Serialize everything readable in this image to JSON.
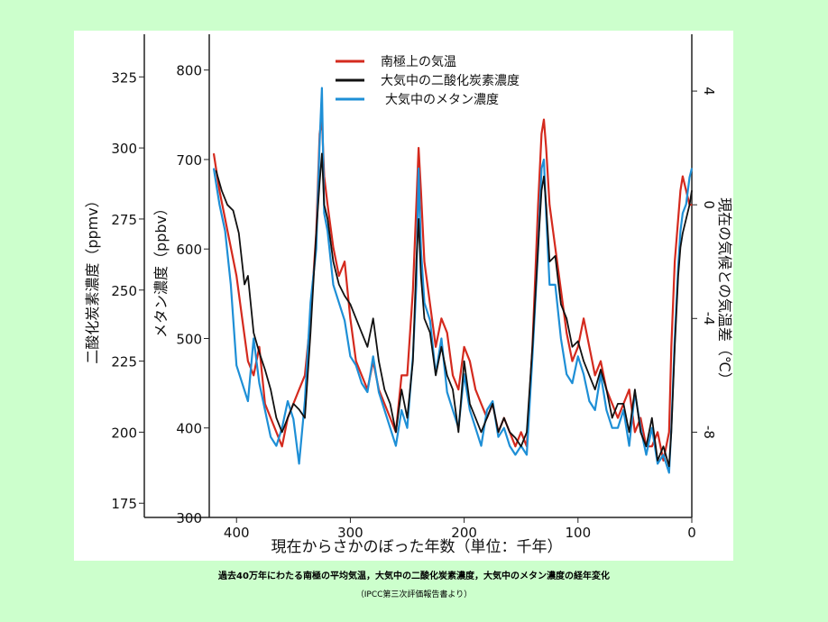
{
  "colors": {
    "background": "#ccffcc",
    "panel": "#ffffff",
    "temperature": "#d42a1e",
    "co2": "#111111",
    "methane": "#1e8fd6"
  },
  "caption": {
    "main": "過去40万年にわたる南極の平均気温，大気中の二酸化炭素濃度，大気中のメタン濃度の経年変化",
    "source": "（IPCC第三次評価報告書より）"
  },
  "chart_data": {
    "type": "line",
    "xlabel": "現在からさかのぼった年数（単位：千年）",
    "x_reversed": true,
    "xlim": [
      0,
      420
    ],
    "x_ticks": [
      400,
      300,
      200,
      100,
      0
    ],
    "grid": false,
    "legend_position": "top-center",
    "axes": {
      "co2": {
        "label": "二酸化炭素濃度（ppmv）",
        "ylim": [
          170,
          340
        ],
        "ticks": [
          175,
          200,
          225,
          250,
          275,
          300,
          325
        ]
      },
      "methane": {
        "label": "メタン濃度（ppbv）",
        "ylim": [
          300,
          840
        ],
        "ticks": [
          300,
          400,
          500,
          600,
          700,
          800
        ]
      },
      "temperature": {
        "label": "現在の気候との気温差（℃）",
        "ylim": [
          -11,
          6
        ],
        "ticks": [
          4,
          0,
          -4,
          -8
        ]
      }
    },
    "series": [
      {
        "name": "南極上の気温",
        "axis": "temperature",
        "x": [
          420,
          415,
          410,
          405,
          400,
          395,
          390,
          385,
          380,
          375,
          370,
          365,
          360,
          355,
          350,
          345,
          340,
          335,
          330,
          327,
          325,
          323,
          320,
          315,
          310,
          305,
          300,
          295,
          290,
          285,
          280,
          275,
          270,
          265,
          260,
          255,
          250,
          245,
          242,
          240,
          238,
          235,
          230,
          225,
          220,
          215,
          210,
          205,
          200,
          195,
          190,
          185,
          180,
          175,
          170,
          165,
          160,
          155,
          150,
          145,
          140,
          135,
          132,
          130,
          128,
          125,
          120,
          115,
          110,
          105,
          100,
          95,
          90,
          85,
          80,
          75,
          70,
          65,
          60,
          55,
          50,
          45,
          40,
          35,
          30,
          25,
          20,
          18,
          15,
          12,
          10,
          8,
          5,
          2,
          0
        ],
        "values": [
          1.8,
          0.5,
          -0.5,
          -1.5,
          -2.5,
          -4.0,
          -5.5,
          -6.0,
          -5.0,
          -7.0,
          -7.5,
          -8.0,
          -8.5,
          -7.5,
          -7.0,
          -6.5,
          -6.0,
          -4.0,
          -1.0,
          2.5,
          3.0,
          1.0,
          0.0,
          -1.5,
          -2.5,
          -2.0,
          -4.0,
          -5.5,
          -6.0,
          -6.5,
          -5.5,
          -6.5,
          -7.0,
          -7.5,
          -8.0,
          -6.0,
          -6.0,
          -3.0,
          0.0,
          2.0,
          0.5,
          -2.0,
          -3.5,
          -5.0,
          -4.0,
          -4.5,
          -6.0,
          -6.5,
          -5.0,
          -5.5,
          -6.5,
          -7.0,
          -7.5,
          -7.0,
          -8.0,
          -7.5,
          -8.0,
          -8.5,
          -8.0,
          -8.5,
          -5.0,
          0.0,
          2.5,
          3.0,
          2.0,
          0.0,
          -1.5,
          -3.0,
          -4.5,
          -5.5,
          -5.0,
          -4.0,
          -5.0,
          -6.0,
          -5.5,
          -6.5,
          -7.0,
          -7.5,
          -7.0,
          -6.5,
          -8.0,
          -7.5,
          -8.5,
          -8.5,
          -8.0,
          -9.0,
          -8.0,
          -5.0,
          -2.0,
          -0.5,
          0.5,
          1.0,
          0.5,
          0.0,
          0.0
        ]
      },
      {
        "name": "大気中の二酸化炭素濃度",
        "axis": "co2",
        "x": [
          418,
          413,
          408,
          403,
          398,
          393,
          390,
          385,
          380,
          375,
          370,
          365,
          360,
          355,
          350,
          345,
          340,
          335,
          330,
          327,
          325,
          323,
          320,
          315,
          310,
          305,
          300,
          295,
          290,
          285,
          280,
          275,
          270,
          265,
          260,
          255,
          250,
          245,
          242,
          240,
          238,
          235,
          230,
          225,
          220,
          215,
          210,
          205,
          200,
          195,
          190,
          185,
          180,
          175,
          170,
          165,
          160,
          155,
          150,
          145,
          140,
          135,
          132,
          130,
          128,
          125,
          120,
          115,
          110,
          105,
          100,
          95,
          90,
          85,
          80,
          75,
          70,
          65,
          60,
          55,
          50,
          45,
          40,
          35,
          30,
          25,
          20,
          18,
          15,
          12,
          10,
          8,
          5,
          2,
          0
        ],
        "values": [
          292,
          285,
          280,
          278,
          270,
          252,
          255,
          235,
          228,
          222,
          215,
          205,
          200,
          205,
          210,
          208,
          205,
          235,
          270,
          288,
          298,
          280,
          275,
          260,
          252,
          248,
          245,
          240,
          235,
          230,
          240,
          225,
          215,
          210,
          200,
          215,
          205,
          225,
          260,
          275,
          255,
          240,
          235,
          220,
          230,
          220,
          215,
          200,
          225,
          210,
          205,
          200,
          205,
          210,
          200,
          205,
          200,
          198,
          195,
          200,
          230,
          265,
          285,
          290,
          280,
          260,
          262,
          245,
          240,
          230,
          232,
          225,
          220,
          215,
          222,
          215,
          205,
          210,
          210,
          200,
          215,
          200,
          195,
          205,
          190,
          195,
          188,
          200,
          230,
          255,
          265,
          270,
          275,
          280,
          285
        ]
      },
      {
        "name": "大気中のメタン濃度",
        "axis": "methane",
        "x": [
          420,
          415,
          410,
          405,
          400,
          395,
          390,
          385,
          380,
          375,
          370,
          365,
          360,
          355,
          350,
          345,
          340,
          335,
          330,
          327,
          325,
          323,
          320,
          315,
          310,
          305,
          300,
          295,
          290,
          285,
          280,
          275,
          270,
          265,
          260,
          255,
          250,
          245,
          242,
          240,
          238,
          235,
          230,
          225,
          220,
          215,
          210,
          205,
          200,
          195,
          190,
          185,
          180,
          175,
          170,
          165,
          160,
          155,
          150,
          145,
          140,
          135,
          132,
          130,
          128,
          125,
          120,
          115,
          110,
          105,
          100,
          95,
          90,
          85,
          80,
          75,
          70,
          65,
          60,
          55,
          50,
          45,
          40,
          35,
          30,
          25,
          20,
          18,
          15,
          12,
          10,
          8,
          5,
          2,
          0
        ],
        "values": [
          690,
          650,
          620,
          560,
          470,
          450,
          430,
          500,
          450,
          420,
          390,
          380,
          400,
          430,
          410,
          360,
          430,
          540,
          600,
          720,
          780,
          640,
          620,
          560,
          540,
          520,
          480,
          470,
          450,
          440,
          480,
          440,
          420,
          400,
          380,
          420,
          400,
          480,
          560,
          690,
          600,
          540,
          520,
          460,
          500,
          440,
          420,
          400,
          460,
          420,
          400,
          380,
          420,
          430,
          390,
          400,
          380,
          370,
          380,
          370,
          480,
          600,
          690,
          700,
          640,
          560,
          560,
          500,
          460,
          450,
          480,
          460,
          430,
          420,
          460,
          420,
          400,
          400,
          420,
          380,
          440,
          400,
          370,
          400,
          360,
          370,
          350,
          400,
          500,
          580,
          620,
          640,
          650,
          680,
          690
        ]
      }
    ]
  }
}
